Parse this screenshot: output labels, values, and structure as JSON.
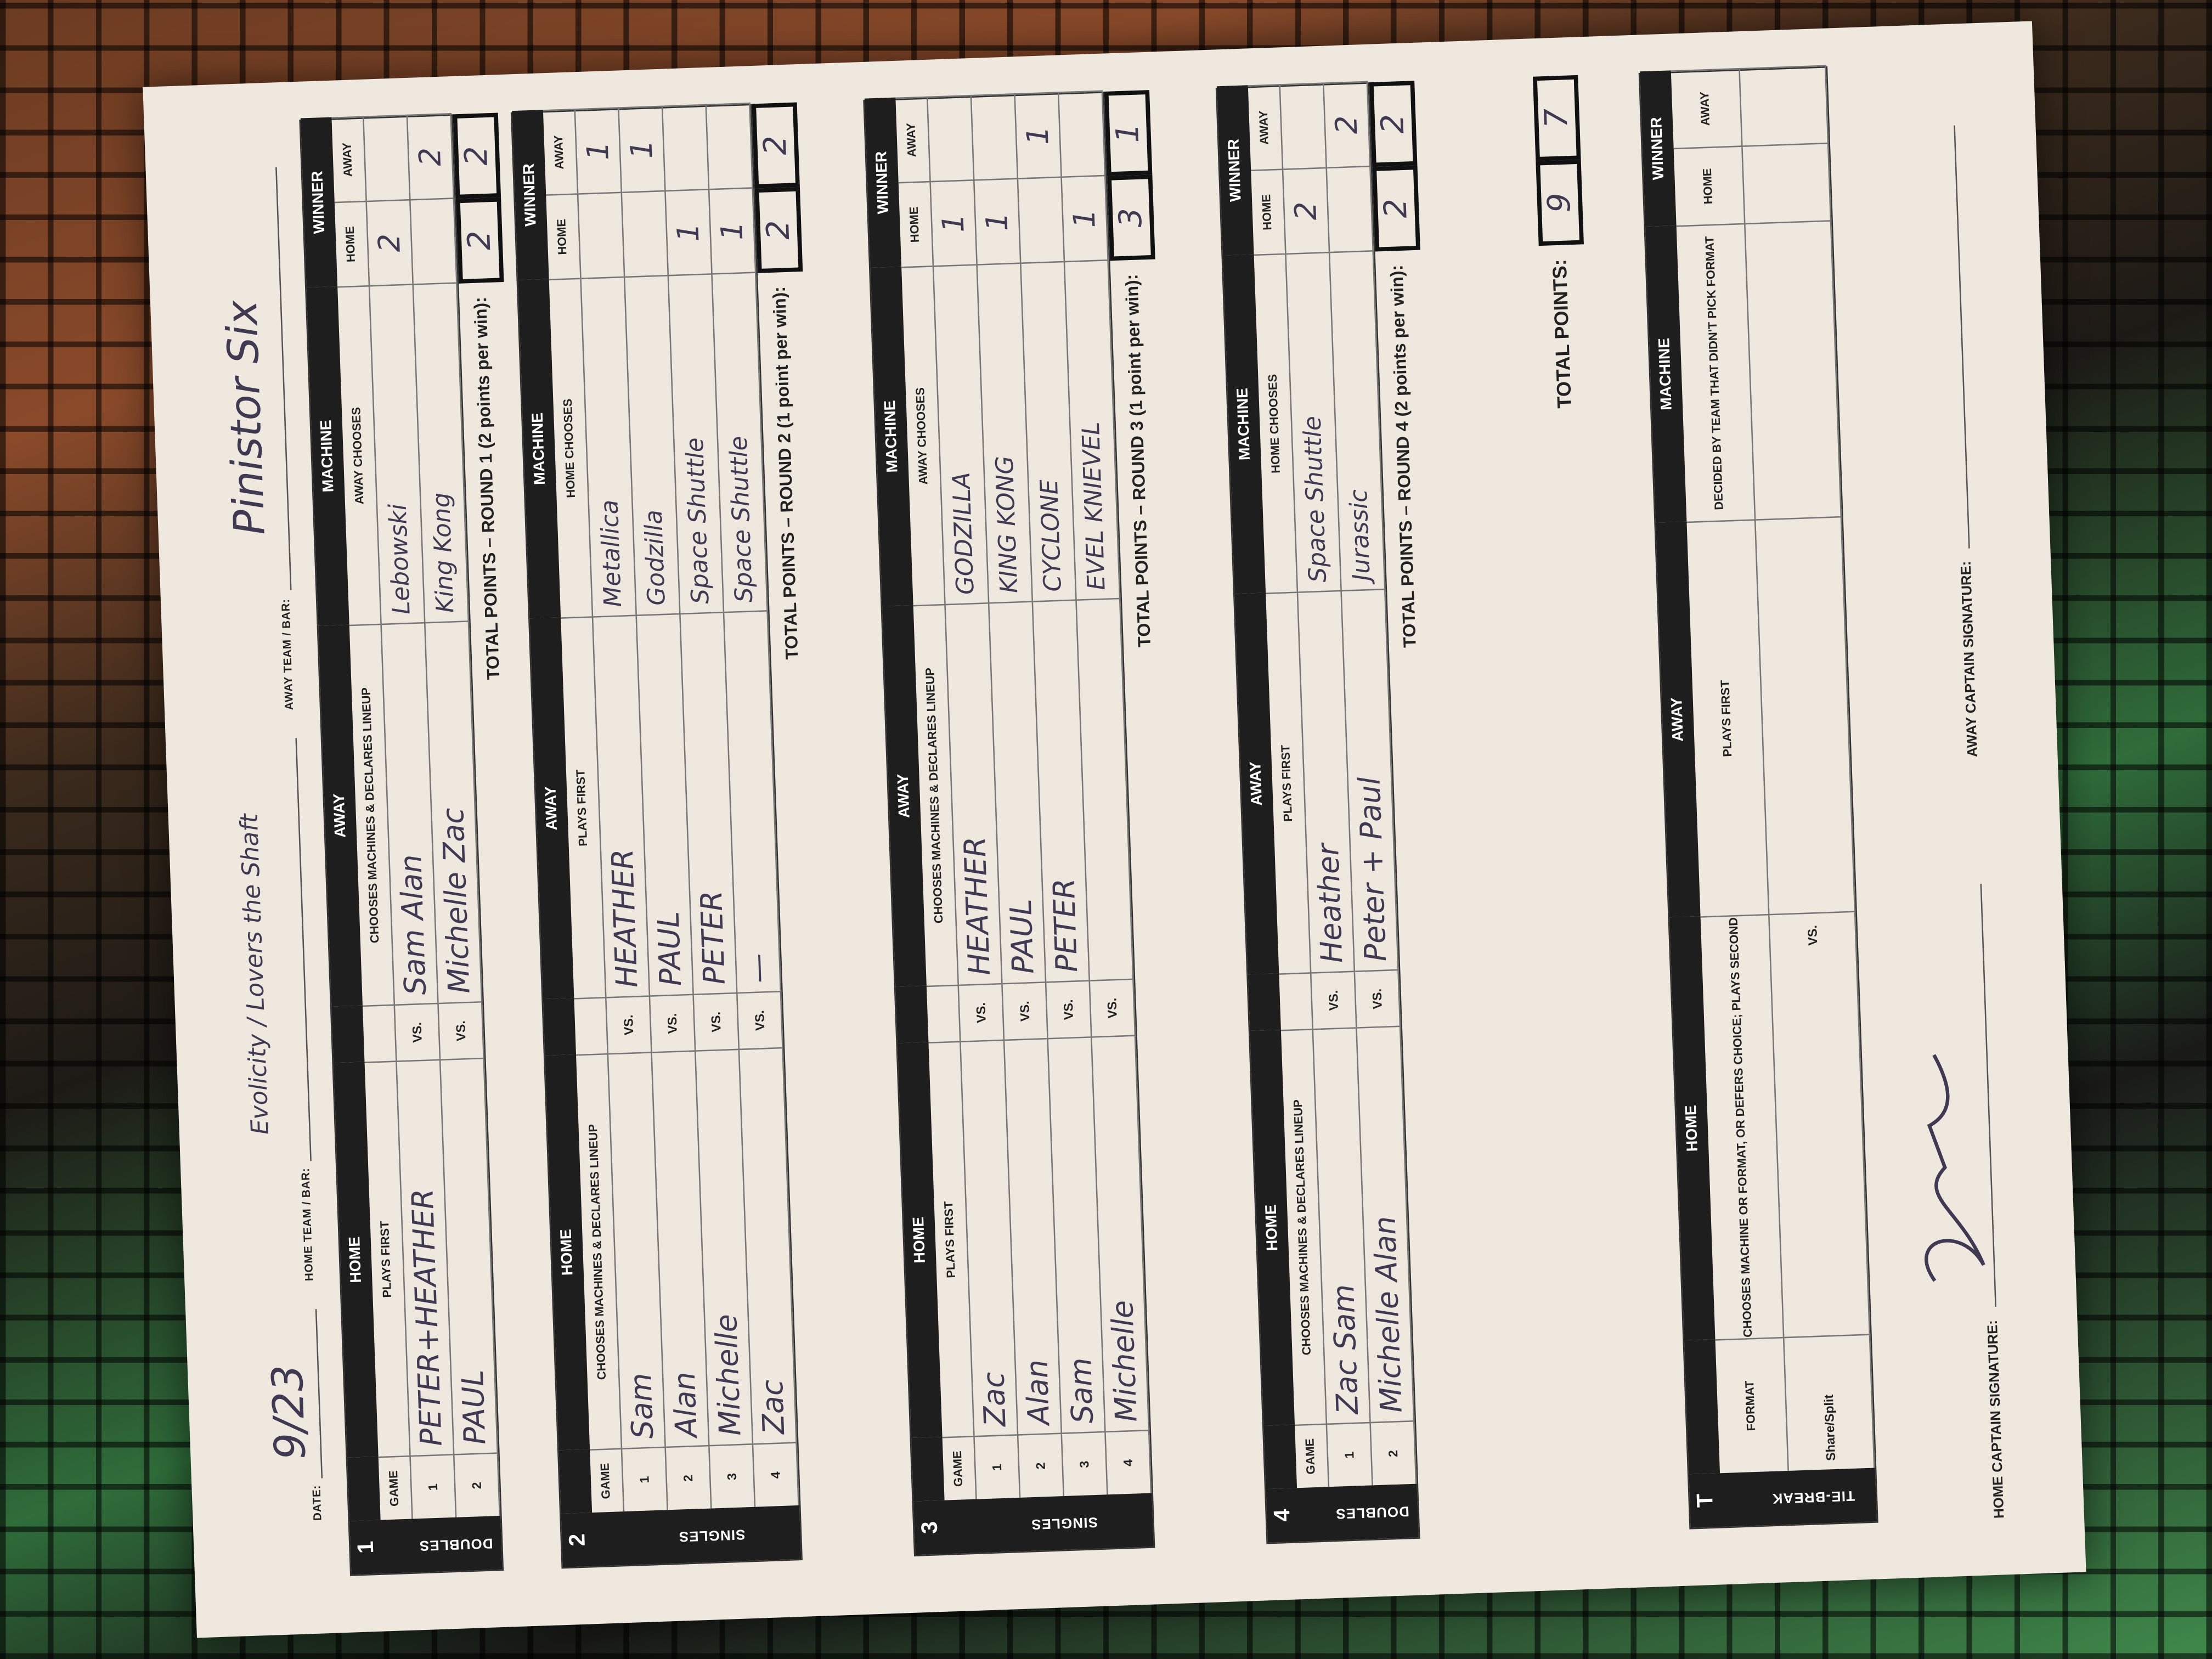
{
  "header": {
    "date_label": "DATE:",
    "date": "9/23",
    "home_team_label": "HOME TEAM / BAR:",
    "home_team": "Evolicity / Lovers the Shaft",
    "away_team_label": "AWAY TEAM / BAR:",
    "away_team": "Pinistor Six"
  },
  "common": {
    "home": "HOME",
    "away": "AWAY",
    "machine": "MACHINE",
    "winner": "WINNER",
    "game": "GAME",
    "vs": "VS.",
    "win_home": "HOME",
    "win_away": "AWAY"
  },
  "rounds": [
    {
      "number": "1",
      "format": "DOUBLES",
      "home_sub": "PLAYS FIRST",
      "away_sub": "CHOOSES MACHINES & DECLARES LINEUP",
      "machine_sub": "AWAY CHOOSES",
      "games": [
        {
          "game": "1",
          "home": "PETER+HEATHER",
          "away": "Sam Alan",
          "machine": "Lebowski",
          "winner_home": "2",
          "winner_away": ""
        },
        {
          "game": "2",
          "home": "PAUL",
          "away": "Michelle Zac",
          "machine": "King Kong",
          "winner_home": "",
          "winner_away": "2"
        }
      ],
      "total_label": "TOTAL POINTS – ROUND 1 (2 points per win):",
      "total_home": "2",
      "total_away": "2"
    },
    {
      "number": "2",
      "format": "SINGLES",
      "home_sub": "CHOOSES MACHINES & DECLARES LINEUP",
      "away_sub": "PLAYS FIRST",
      "machine_sub": "HOME CHOOSES",
      "games": [
        {
          "game": "1",
          "home": "Sam",
          "away": "HEATHER",
          "machine": "Metallica",
          "winner_home": "",
          "winner_away": "1"
        },
        {
          "game": "2",
          "home": "Alan",
          "away": "PAUL",
          "machine": "Godzilla",
          "winner_home": "",
          "winner_away": "1"
        },
        {
          "game": "3",
          "home": "Michelle",
          "away": "PETER",
          "machine": "Space Shuttle",
          "winner_home": "1",
          "winner_away": ""
        },
        {
          "game": "4",
          "home": "Zac",
          "away": "—",
          "machine": "Space Shuttle",
          "winner_home": "1",
          "winner_away": ""
        }
      ],
      "total_label": "TOTAL POINTS – ROUND 2 (1 point per win):",
      "total_home": "2",
      "total_away": "2"
    },
    {
      "number": "3",
      "format": "SINGLES",
      "home_sub": "PLAYS FIRST",
      "away_sub": "CHOOSES MACHINES & DECLARES LINEUP",
      "machine_sub": "AWAY CHOOSES",
      "games": [
        {
          "game": "1",
          "home": "Zac",
          "away": "HEATHER",
          "machine": "GODZILLA",
          "winner_home": "1",
          "winner_away": ""
        },
        {
          "game": "2",
          "home": "Alan",
          "away": "PAUL",
          "machine": "KING KONG",
          "winner_home": "1",
          "winner_away": ""
        },
        {
          "game": "3",
          "home": "Sam",
          "away": "PETER",
          "machine": "CYCLONE",
          "winner_home": "",
          "winner_away": "1"
        },
        {
          "game": "4",
          "home": "Michelle",
          "away": "",
          "machine": "EVEL KNIEVEL",
          "winner_home": "1",
          "winner_away": ""
        }
      ],
      "total_label": "TOTAL POINTS – ROUND 3 (1 point per win):",
      "total_home": "3",
      "total_away": "1"
    },
    {
      "number": "4",
      "format": "DOUBLES",
      "home_sub": "CHOOSES MACHINES & DECLARES LINEUP",
      "away_sub": "PLAYS FIRST",
      "machine_sub": "HOME CHOOSES",
      "games": [
        {
          "game": "1",
          "home": "Zac Sam",
          "away": "Heather",
          "machine": "Space Shuttle",
          "winner_home": "2",
          "winner_away": ""
        },
        {
          "game": "2",
          "home": "Michelle Alan",
          "away": "Peter + Paul",
          "machine": "Jurassic",
          "winner_home": "",
          "winner_away": "2"
        }
      ],
      "total_label": "TOTAL POINTS – ROUND 4 (2 points per win):",
      "total_home": "2",
      "total_away": "2"
    }
  ],
  "grand_total": {
    "label": "TOTAL POINTS:",
    "home": "9",
    "away": "7"
  },
  "tiebreak": {
    "letter": "T",
    "format_label": "TIE-BREAK",
    "col_format": "FORMAT",
    "home_sub": "CHOOSES MACHINE OR FORMAT, OR DEFERS CHOICE; PLAYS SECOND",
    "away_sub": "PLAYS FIRST",
    "machine_sub": "DECIDED BY TEAM THAT DIDN'T PICK FORMAT",
    "row_format": "Share/Split"
  },
  "signatures": {
    "home_label": "HOME CAPTAIN SIGNATURE:",
    "away_label": "AWAY CAPTAIN SIGNATURE:"
  }
}
